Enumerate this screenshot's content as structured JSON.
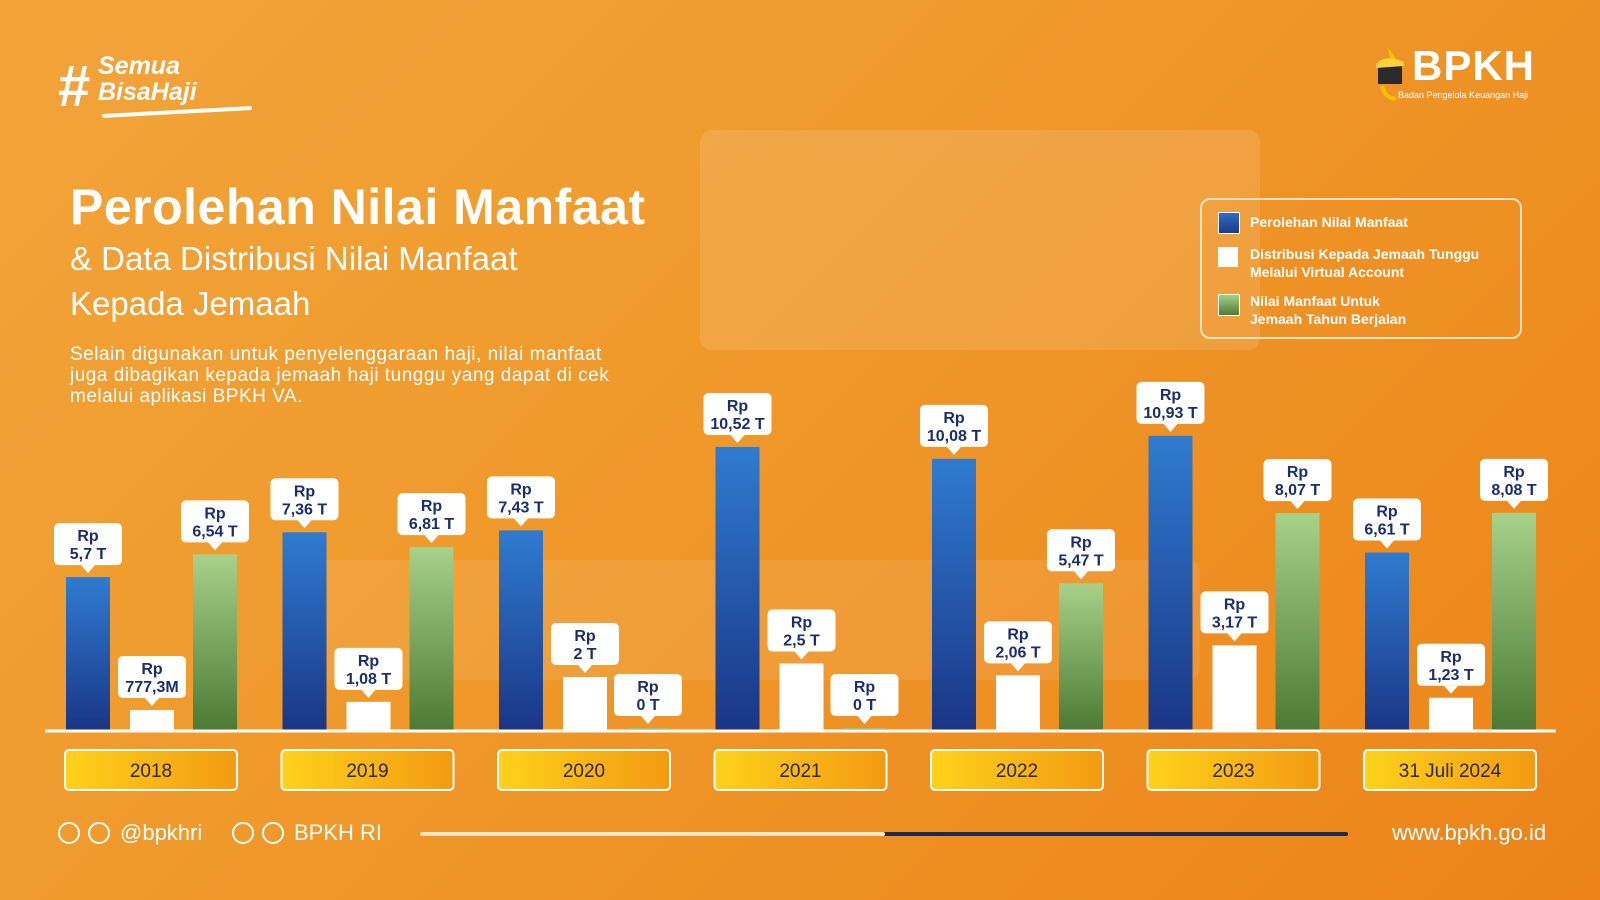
{
  "brand": {
    "hashtag_line1": "Semua",
    "hashtag_line2": "BisaHaji",
    "logo_name": "BPKH",
    "logo_subtitle": "Badan Pengelola Keuangan Haji"
  },
  "header": {
    "title": "Perolehan Nilai Manfaat",
    "subtitle_line1": "& Data Distribusi Nilai Manfaat",
    "subtitle_line2": "Kepada Jemaah",
    "description": "Selain digunakan untuk penyelenggaraan haji, nilai manfaat juga dibagikan kepada jemaah haji tunggu yang dapat di cek melalui aplikasi BPKH VA."
  },
  "legend": {
    "items": [
      {
        "line1": "Perolehan Nilai Manfaat",
        "line2": ""
      },
      {
        "line1": "Distribusi Kepada Jemaah Tunggu",
        "line2": "Melalui Virtual Account"
      },
      {
        "line1": "Nilai Manfaat Untuk",
        "line2": "Jemaah Tahun Berjalan"
      }
    ]
  },
  "chart_data": {
    "type": "bar",
    "title": "Perolehan Nilai Manfaat & Data Distribusi Nilai Manfaat Kepada Jemaah",
    "unit": "Triliun Rupiah",
    "categories": [
      "2018",
      "2019",
      "2020",
      "2021",
      "2022",
      "2023",
      "31 Juli 2024"
    ],
    "series": [
      {
        "name": "Perolehan Nilai Manfaat",
        "color": "#1f4fa8",
        "values": [
          5.7,
          7.36,
          7.43,
          10.52,
          10.08,
          10.93,
          6.61
        ],
        "labels": [
          [
            "Rp",
            "5,7 T"
          ],
          [
            "Rp",
            "7,36 T"
          ],
          [
            "Rp",
            "7,43 T"
          ],
          [
            "Rp",
            "10,52 T"
          ],
          [
            "Rp",
            "10,08 T"
          ],
          [
            "Rp",
            "10,93 T"
          ],
          [
            "Rp",
            "6,61 T"
          ]
        ]
      },
      {
        "name": "Distribusi Kepada Jemaah Tunggu Melalui Virtual Account",
        "color": "#ffffff",
        "values": [
          0.7773,
          1.08,
          2.0,
          2.5,
          2.06,
          3.17,
          1.23
        ],
        "labels": [
          [
            "Rp",
            "777,3M"
          ],
          [
            "Rp",
            "1,08 T"
          ],
          [
            "Rp",
            "2 T"
          ],
          [
            "Rp",
            "2,5 T"
          ],
          [
            "Rp",
            "2,06 T"
          ],
          [
            "Rp",
            "3,17 T"
          ],
          [
            "Rp",
            "1,23 T"
          ]
        ]
      },
      {
        "name": "Nilai Manfaat Untuk Jemaah Tahun Berjalan",
        "color": "#6a9a4e",
        "values": [
          6.54,
          6.81,
          0,
          0,
          5.47,
          8.07,
          8.08
        ],
        "labels": [
          [
            "Rp",
            "6,54 T"
          ],
          [
            "Rp",
            "6,81 T"
          ],
          [
            "Rp",
            "0 T"
          ],
          [
            "Rp",
            "0 T"
          ],
          [
            "Rp",
            "5,47 T"
          ],
          [
            "Rp",
            "8,07 T"
          ],
          [
            "Rp",
            "8,08 T"
          ]
        ]
      }
    ],
    "ylim": [
      0,
      11
    ],
    "grid": false,
    "legend_position": "top-right"
  },
  "footer": {
    "social_handle": "@bpkhri",
    "social_name": "BPKH RI",
    "website": "www.bpkh.go.id"
  }
}
